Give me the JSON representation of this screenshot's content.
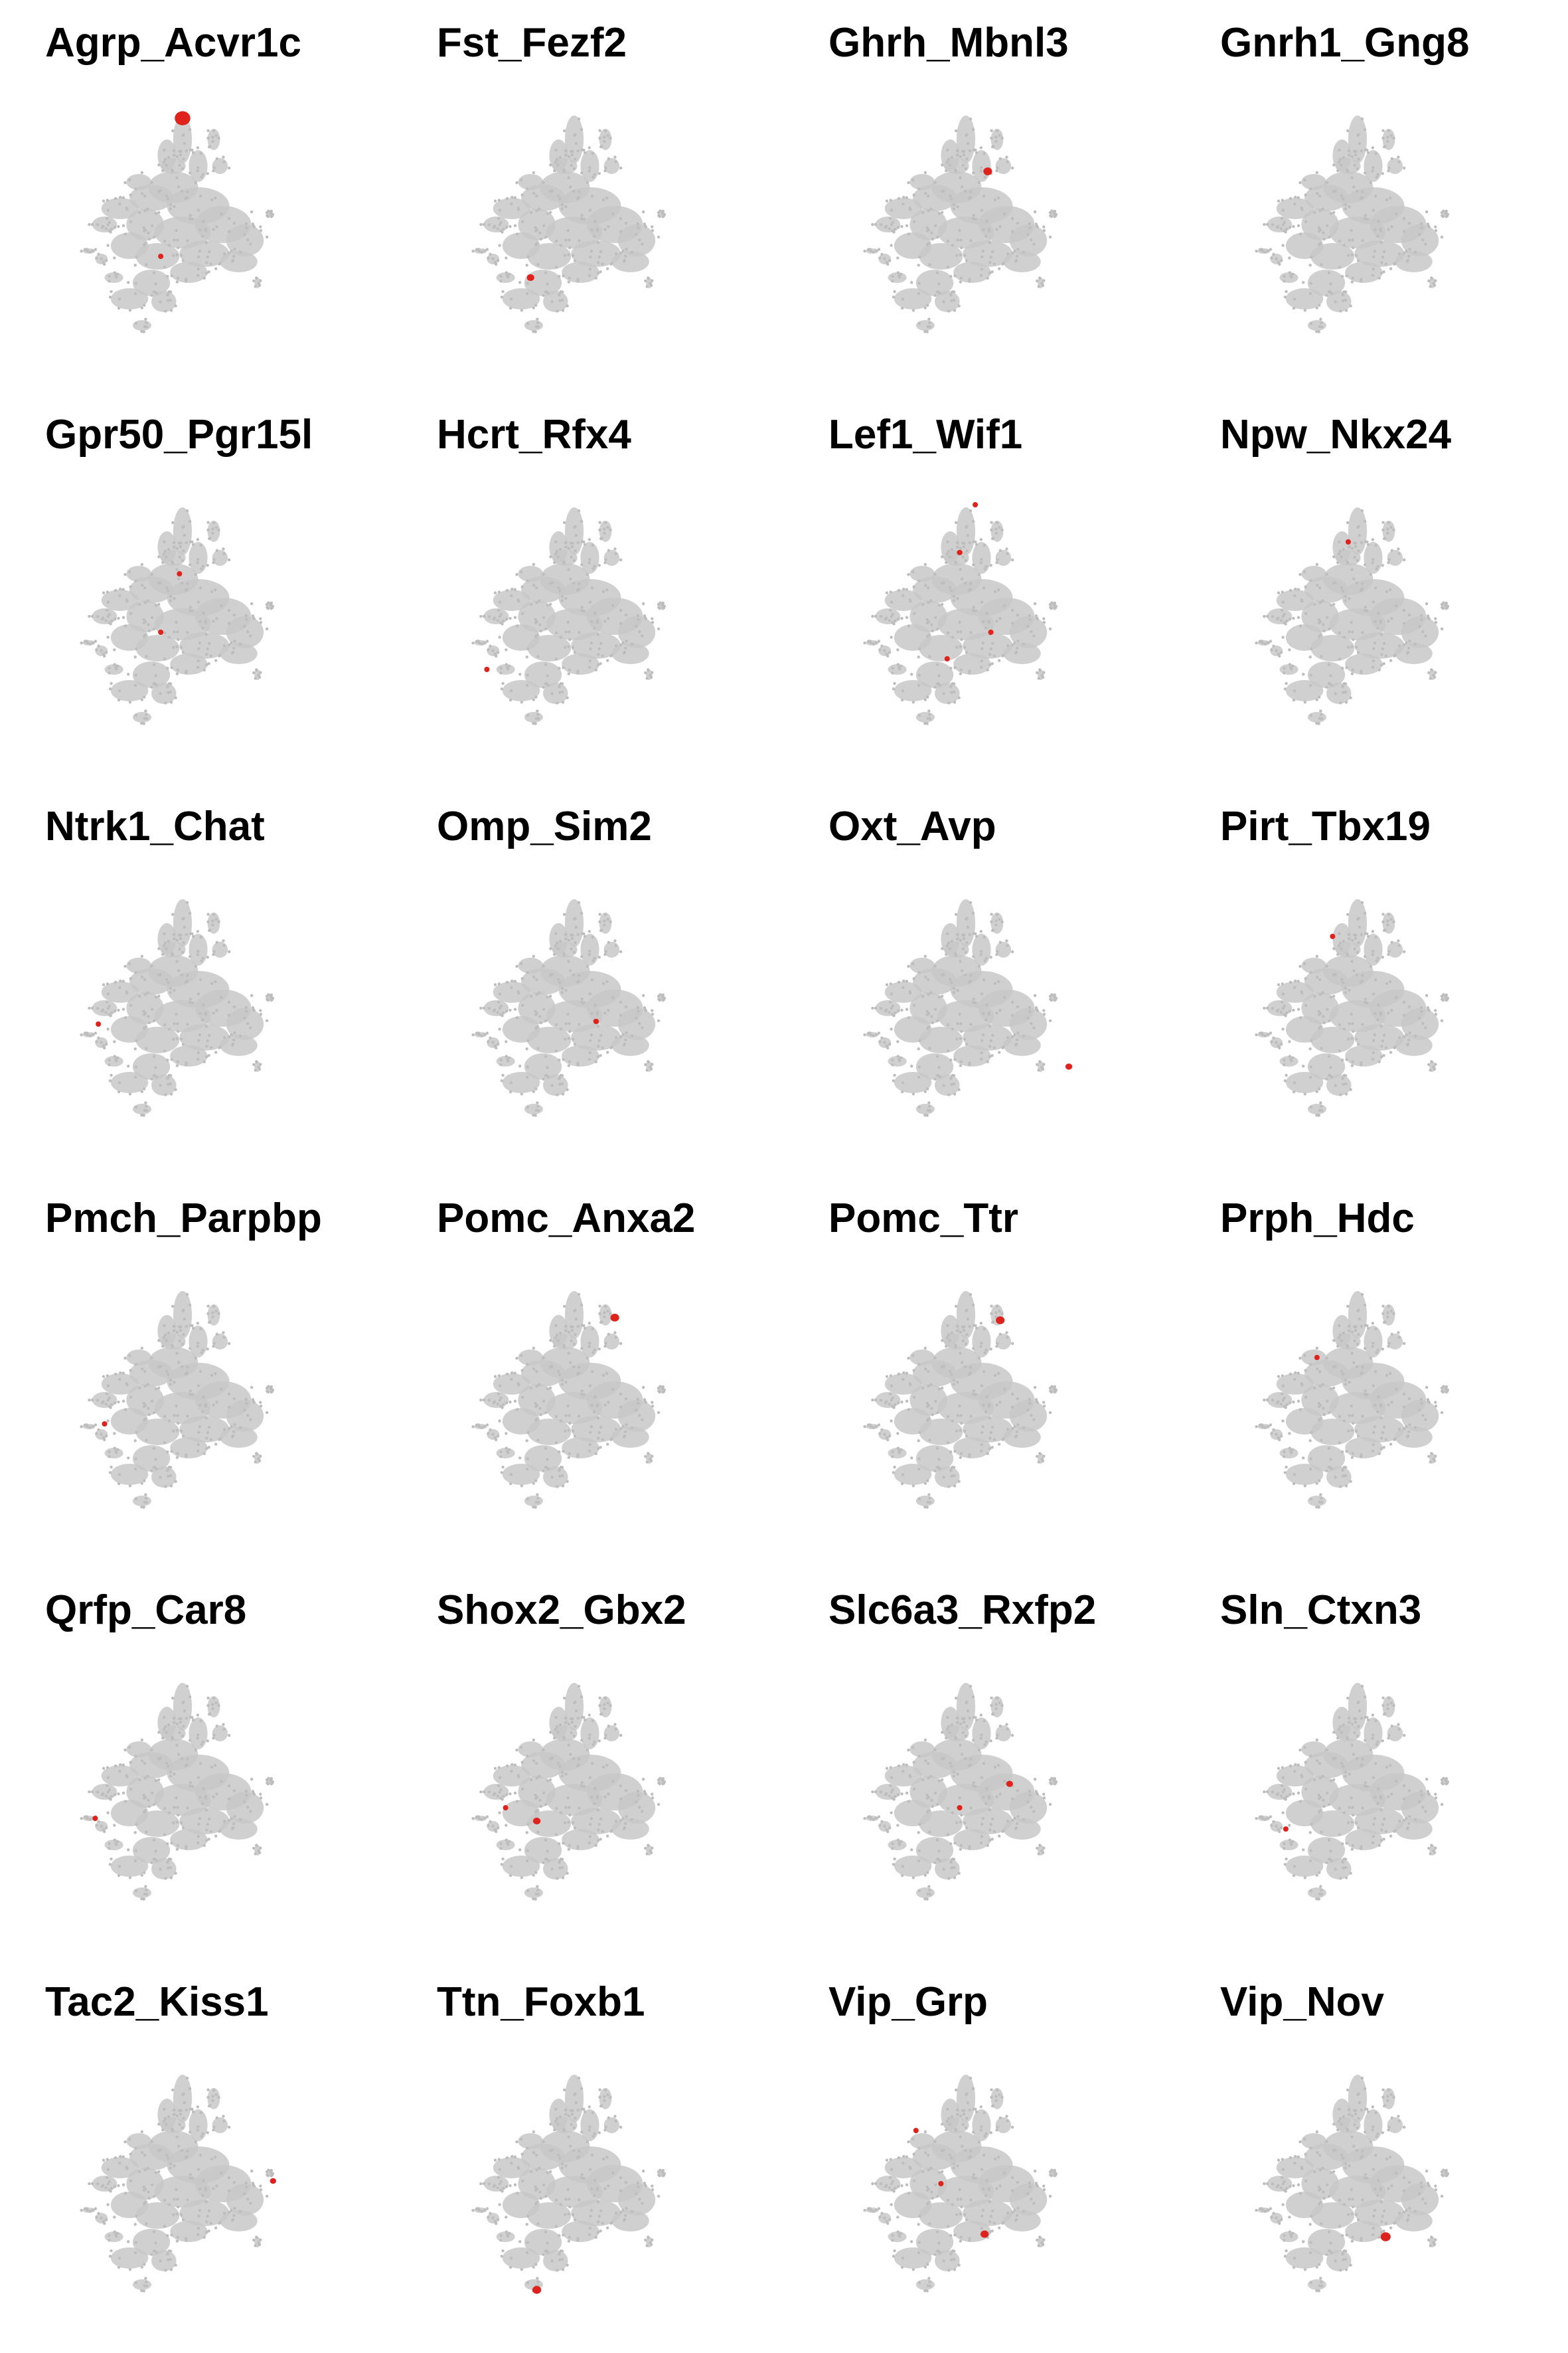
{
  "chart_data": {
    "type": "scatter",
    "description_kind": "faceted embedding plot",
    "background_color": "#c8c8c8",
    "highlight_color": "#e0221c",
    "axes_shown": false,
    "grid": false,
    "legend": "none",
    "panels": [
      {
        "title": "Agrp_Acvr1c",
        "highlight": [
          {
            "cx": 0.5,
            "cy": 0.12,
            "r": 0.025
          },
          {
            "cx": 0.43,
            "cy": 0.64,
            "r": 0.006
          }
        ]
      },
      {
        "title": "Fst_Fezf2",
        "highlight": [
          {
            "cx": 0.36,
            "cy": 0.72,
            "r": 0.012
          }
        ]
      },
      {
        "title": "Ghrh_Mbnl3",
        "highlight": [
          {
            "cx": 0.57,
            "cy": 0.32,
            "r": 0.014
          }
        ]
      },
      {
        "title": "Gnrh1_Gng8",
        "highlight": []
      },
      {
        "title": "Gpr50_Pgr15l",
        "highlight": [
          {
            "cx": 0.49,
            "cy": 0.36,
            "r": 0.006
          },
          {
            "cx": 0.43,
            "cy": 0.58,
            "r": 0.004
          }
        ]
      },
      {
        "title": "Hcrt_Rfx4",
        "highlight": [
          {
            "cx": 0.22,
            "cy": 0.72,
            "r": 0.008
          }
        ]
      },
      {
        "title": "Lef1_Wif1",
        "highlight": [
          {
            "cx": 0.48,
            "cy": 0.28,
            "r": 0.009
          },
          {
            "cx": 0.53,
            "cy": 0.1,
            "r": 0.006
          },
          {
            "cx": 0.44,
            "cy": 0.68,
            "r": 0.006
          },
          {
            "cx": 0.58,
            "cy": 0.58,
            "r": 0.004
          }
        ]
      },
      {
        "title": "Npw_Nkx24",
        "highlight": [
          {
            "cx": 0.47,
            "cy": 0.24,
            "r": 0.006
          }
        ]
      },
      {
        "title": "Ntrk1_Chat",
        "highlight": [
          {
            "cx": 0.23,
            "cy": 0.58,
            "r": 0.006
          }
        ]
      },
      {
        "title": "Omp_Sim2",
        "highlight": [
          {
            "cx": 0.57,
            "cy": 0.57,
            "r": 0.009
          }
        ]
      },
      {
        "title": "Oxt_Avp",
        "highlight": [
          {
            "cx": 0.83,
            "cy": 0.74,
            "r": 0.011
          }
        ]
      },
      {
        "title": "Pirt_Tbx19",
        "highlight": [
          {
            "cx": 0.42,
            "cy": 0.25,
            "r": 0.008
          }
        ]
      },
      {
        "title": "Pmch_Parpbp",
        "highlight": [
          {
            "cx": 0.25,
            "cy": 0.61,
            "r": 0.007
          }
        ]
      },
      {
        "title": "Pomc_Anxa2",
        "highlight": [
          {
            "cx": 0.63,
            "cy": 0.21,
            "r": 0.014
          }
        ]
      },
      {
        "title": "Pomc_Ttr",
        "highlight": [
          {
            "cx": 0.61,
            "cy": 0.22,
            "r": 0.014
          }
        ]
      },
      {
        "title": "Prph_Hdc",
        "highlight": [
          {
            "cx": 0.37,
            "cy": 0.36,
            "r": 0.007
          }
        ]
      },
      {
        "title": "Qrfp_Car8",
        "highlight": [
          {
            "cx": 0.22,
            "cy": 0.62,
            "r": 0.008
          }
        ]
      },
      {
        "title": "Shox2_Gbx2",
        "highlight": [
          {
            "cx": 0.38,
            "cy": 0.63,
            "r": 0.012
          },
          {
            "cx": 0.28,
            "cy": 0.58,
            "r": 0.006
          }
        ]
      },
      {
        "title": "Slc6a3_Rxfp2",
        "highlight": [
          {
            "cx": 0.64,
            "cy": 0.49,
            "r": 0.011
          },
          {
            "cx": 0.48,
            "cy": 0.58,
            "r": 0.004
          }
        ]
      },
      {
        "title": "Sln_Ctxn3",
        "highlight": [
          {
            "cx": 0.27,
            "cy": 0.66,
            "r": 0.005
          }
        ]
      },
      {
        "title": "Tac2_Kiss1",
        "highlight": [
          {
            "cx": 0.79,
            "cy": 0.51,
            "r": 0.01
          }
        ]
      },
      {
        "title": "Ttn_Foxb1",
        "highlight": [
          {
            "cx": 0.38,
            "cy": 0.92,
            "r": 0.014
          }
        ]
      },
      {
        "title": "Vip_Grp",
        "highlight": [
          {
            "cx": 0.56,
            "cy": 0.71,
            "r": 0.013
          },
          {
            "cx": 0.34,
            "cy": 0.32,
            "r": 0.005
          },
          {
            "cx": 0.42,
            "cy": 0.52,
            "r": 0.004
          }
        ]
      },
      {
        "title": "Vip_Nov",
        "highlight": [
          {
            "cx": 0.59,
            "cy": 0.72,
            "r": 0.016
          }
        ]
      }
    ]
  }
}
